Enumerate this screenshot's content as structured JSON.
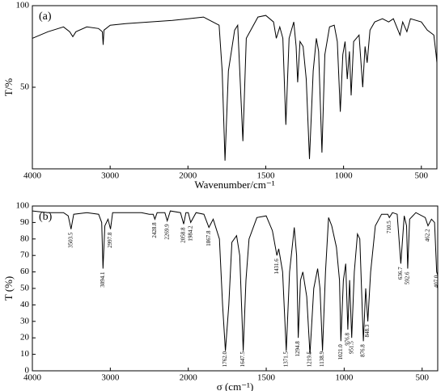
{
  "chart_data": [
    {
      "type": "line",
      "label": "(a)",
      "xlabel": "Wavenumber/cm⁻¹",
      "ylabel": "T/%",
      "xscale": "piecewise",
      "xlim": [
        4000,
        400
      ],
      "xticks": [
        4000,
        3000,
        2000,
        1500,
        1000,
        500
      ],
      "ylim": [
        0,
        100
      ],
      "yticks": [
        50,
        100
      ],
      "series": [
        {
          "color": "#000000",
          "x": [
            4000,
            3800,
            3600,
            3520,
            3480,
            3440,
            3300,
            3150,
            3100,
            3090,
            3080,
            3000,
            2800,
            2500,
            2200,
            2000,
            1900,
            1800,
            1780,
            1762,
            1740,
            1700,
            1680,
            1647,
            1625,
            1550,
            1500,
            1450,
            1432,
            1410,
            1390,
            1371,
            1350,
            1320,
            1305,
            1295,
            1280,
            1260,
            1240,
            1219,
            1195,
            1175,
            1160,
            1139,
            1120,
            1090,
            1060,
            1040,
            1021,
            1005,
            990,
            976,
            962,
            951,
            935,
            900,
            877,
            862,
            848,
            830,
            800,
            750,
            710,
            680,
            637,
            620,
            593,
            570,
            500,
            462,
            420,
            405,
            400
          ],
          "values": [
            80,
            84,
            87,
            84,
            81,
            84,
            87,
            86,
            84,
            76,
            85,
            88,
            89,
            90,
            91,
            92,
            93,
            88,
            60,
            5,
            60,
            85,
            88,
            17,
            80,
            93,
            94,
            90,
            80,
            87,
            80,
            27,
            80,
            90,
            75,
            53,
            78,
            75,
            55,
            6,
            60,
            80,
            72,
            10,
            70,
            87,
            88,
            78,
            35,
            70,
            78,
            55,
            72,
            45,
            78,
            82,
            50,
            75,
            65,
            85,
            90,
            92,
            90,
            92,
            82,
            90,
            84,
            92,
            90,
            85,
            82,
            70,
            65
          ]
        }
      ]
    },
    {
      "type": "line",
      "label": "(b)",
      "xlabel": "σ (cm⁻¹)",
      "ylabel": "T (%)",
      "xscale": "piecewise",
      "xlim": [
        4000,
        400
      ],
      "xticks": [
        4000,
        3000,
        2000,
        1500,
        1000,
        500
      ],
      "ylim": [
        0,
        100
      ],
      "yticks": [
        0,
        10,
        20,
        30,
        40,
        50,
        60,
        70,
        80,
        90,
        100
      ],
      "series": [
        {
          "color": "#000000",
          "x": [
            4000,
            3800,
            3600,
            3540,
            3503.5,
            3470,
            3300,
            3150,
            3110,
            3094.1,
            3070,
            3030,
            2997.8,
            2970,
            2800,
            2600,
            2500,
            2450,
            2428.8,
            2400,
            2300,
            2269.9,
            2230,
            2100,
            2058.8,
            2030,
            2000,
            1984.2,
            1950,
            1900,
            1867.8,
            1840,
            1800,
            1780,
            1762,
            1740,
            1720,
            1690,
            1670,
            1647.5,
            1630,
            1610,
            1560,
            1500,
            1460,
            1431.6,
            1420,
            1395,
            1371.5,
            1350,
            1320,
            1305,
            1294.8,
            1280,
            1265,
            1240,
            1219.5,
            1195,
            1170,
            1155,
            1138.9,
            1120,
            1100,
            1080,
            1050,
            1030,
            1021,
            1005,
            990,
            976.8,
            965,
            951.5,
            935,
            915,
            900,
            876.8,
            862,
            848.3,
            830,
            800,
            760,
            720,
            710.5,
            690,
            660,
            636.7,
            615,
            600,
            592.6,
            580,
            540,
            480,
            462.2,
            440,
            420,
            407,
            400
          ],
          "values": [
            97,
            96,
            96,
            94,
            86,
            95,
            96,
            95,
            90,
            62,
            88,
            92,
            86,
            96,
            96,
            96,
            95,
            95,
            92,
            96,
            96,
            91,
            97,
            96,
            89,
            96,
            96,
            90,
            96,
            95,
            87,
            92,
            80,
            40,
            12,
            40,
            78,
            82,
            70,
            12,
            55,
            80,
            93,
            94,
            85,
            70,
            74,
            60,
            12,
            60,
            87,
            70,
            20,
            55,
            60,
            45,
            10,
            50,
            62,
            50,
            12,
            60,
            93,
            88,
            75,
            55,
            18,
            55,
            65,
            25,
            55,
            20,
            60,
            83,
            80,
            18,
            50,
            30,
            60,
            88,
            95,
            95,
            93,
            96,
            95,
            65,
            94,
            88,
            62,
            92,
            96,
            93,
            88,
            92,
            90,
            60,
            58
          ]
        }
      ],
      "peaks": [
        {
          "x": 3503.5,
          "label": "3503.5"
        },
        {
          "x": 3094.1,
          "label": "3094.1"
        },
        {
          "x": 2997.8,
          "label": "2997.8"
        },
        {
          "x": 2428.8,
          "label": "2428.8"
        },
        {
          "x": 2269.9,
          "label": "2269.9"
        },
        {
          "x": 2058.8,
          "label": "2058.8"
        },
        {
          "x": 1984.2,
          "label": "1984.2"
        },
        {
          "x": 1867.8,
          "label": "1867.8"
        },
        {
          "x": 1762,
          "label": "1762.0"
        },
        {
          "x": 1647.5,
          "label": "1647.5"
        },
        {
          "x": 1431.6,
          "label": "1431.6"
        },
        {
          "x": 1371.5,
          "label": "1371.5"
        },
        {
          "x": 1294.8,
          "label": "1294.8"
        },
        {
          "x": 1219.5,
          "label": "1219.5"
        },
        {
          "x": 1138.9,
          "label": "1138.9"
        },
        {
          "x": 1021,
          "label": "1021.0"
        },
        {
          "x": 976.8,
          "label": "976.8"
        },
        {
          "x": 951.5,
          "label": "951.5"
        },
        {
          "x": 876.8,
          "label": "876.8"
        },
        {
          "x": 848.3,
          "label": "848.3"
        },
        {
          "x": 710.5,
          "label": "710.5"
        },
        {
          "x": 636.7,
          "label": "636.7"
        },
        {
          "x": 592.6,
          "label": "592.6"
        },
        {
          "x": 462.2,
          "label": "462.2"
        },
        {
          "x": 407,
          "label": "407.0"
        }
      ]
    }
  ]
}
